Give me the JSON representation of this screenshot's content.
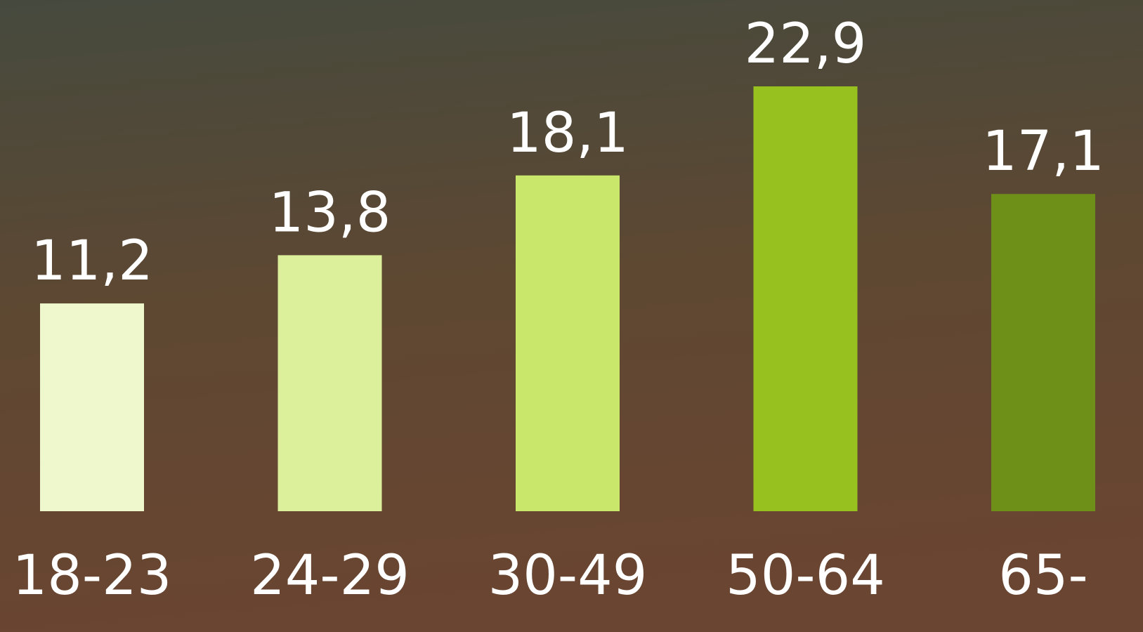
{
  "chart_data": {
    "type": "bar",
    "categories": [
      "18-23",
      "24-29",
      "30-49",
      "50-64",
      "65-"
    ],
    "values": [
      11.2,
      13.8,
      18.1,
      22.9,
      17.1
    ],
    "value_labels": [
      "11,2",
      "13,8",
      "18,1",
      "22,9",
      "17,1"
    ],
    "colors": [
      "#eef8cc",
      "#dcef9b",
      "#c9e76b",
      "#97c11e",
      "#6f9018"
    ]
  }
}
